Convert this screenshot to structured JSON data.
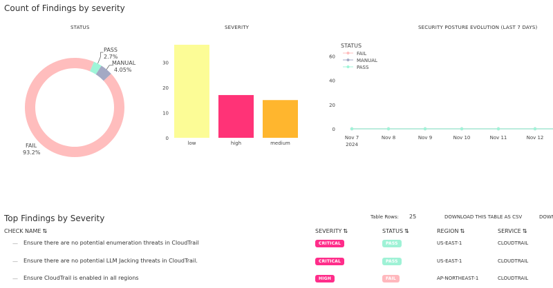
{
  "page": {
    "section1_title": "Count of Findings by severity",
    "section2_title": "Top Findings by Severity"
  },
  "colors": {
    "fail": "#ffbdbd",
    "manual": "#a3a9c4",
    "pass": "#9ff5d8",
    "low": "#fcfc96",
    "high": "#ff3377",
    "medium": "#ffb62e",
    "accent_badge": "#ff2d8a"
  },
  "charts": {
    "status_title": "STATUS",
    "severity_title": "SEVERITY",
    "evolution_title": "SECURITY POSTURE EVOLUTION (LAST 7 DAYS)"
  },
  "chart_data": [
    {
      "type": "pie",
      "title": "STATUS",
      "donut": true,
      "slices": [
        {
          "label": "FAIL",
          "value": 93.2,
          "display": "93.2%"
        },
        {
          "label": "PASS",
          "value": 2.7,
          "display": "2.7%"
        },
        {
          "label": "MANUAL",
          "value": 4.05,
          "display": "4.05%"
        }
      ]
    },
    {
      "type": "bar",
      "title": "SEVERITY",
      "categories": [
        "low",
        "high",
        "medium"
      ],
      "values": [
        37,
        17,
        15
      ],
      "ylim": [
        0,
        40
      ],
      "yticks": [
        0,
        10,
        20,
        30
      ]
    },
    {
      "type": "line",
      "title": "SECURITY POSTURE EVOLUTION (LAST 7 DAYS)",
      "legend_title": "STATUS",
      "legend_position": "top-left",
      "x": [
        "Nov 7",
        "Nov 8",
        "Nov 9",
        "Nov 10",
        "Nov 11",
        "Nov 12"
      ],
      "x_sublabel": "2024",
      "ylim": [
        0,
        70
      ],
      "yticks": [
        0,
        20,
        40,
        60
      ],
      "series": [
        {
          "name": "FAIL",
          "values": [
            0,
            0,
            0,
            0,
            0,
            0
          ]
        },
        {
          "name": "MANUAL",
          "values": [
            0,
            0,
            0,
            0,
            0,
            0
          ]
        },
        {
          "name": "PASS",
          "values": [
            0,
            0,
            0,
            0,
            0,
            0
          ]
        }
      ]
    }
  ],
  "table_controls": {
    "rows_label": "Table Rows:",
    "rows_value": "25",
    "download_csv": "DOWNLOAD THIS TABLE AS CSV",
    "download_more": "DOWN"
  },
  "table": {
    "columns": {
      "check_name": "CHECK NAME",
      "severity": "SEVERITY",
      "status": "STATUS",
      "region": "REGION",
      "service": "SERVICE"
    },
    "sort_glyph": "⇅",
    "row_dash": "—",
    "rows": [
      {
        "check_name": "Ensure there are no potential enumeration threats in CloudTrail",
        "severity": "CRITICAL",
        "status": "PASS",
        "region": "US-EAST-1",
        "service": "CLOUDTRAIL"
      },
      {
        "check_name": "Ensure there are no potential LLM Jacking threats in CloudTrail.",
        "severity": "CRITICAL",
        "status": "PASS",
        "region": "US-EAST-1",
        "service": "CLOUDTRAIL"
      },
      {
        "check_name": "Ensure CloudTrail is enabled in all regions",
        "severity": "HIGH",
        "status": "FAIL",
        "region": "AP-NORTHEAST-1",
        "service": "CLOUDTRAIL"
      }
    ]
  }
}
